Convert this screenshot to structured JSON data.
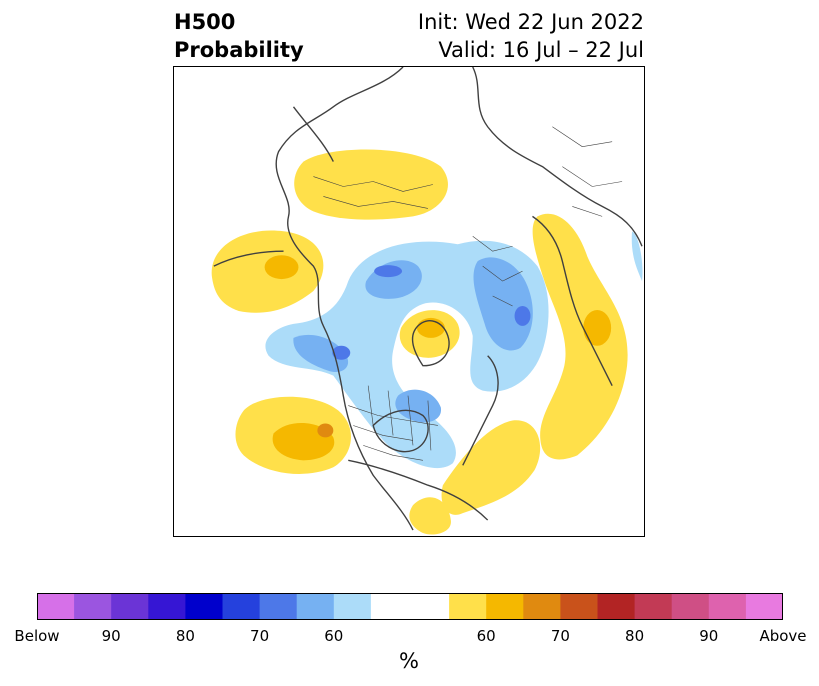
{
  "title": {
    "left_line1": "H500",
    "left_line2": "Probability",
    "init": "Init: Wed 22 Jun 2022",
    "valid": "Valid: 16 Jul – 22 Jul"
  },
  "colorbar": {
    "units": "%",
    "below_colors": [
      "#d670e8",
      "#9b55e0",
      "#6b34d6",
      "#3616d4",
      "#0000cc",
      "#2541dd",
      "#4d78e8",
      "#76b1f2",
      "#acdcf9"
    ],
    "neutral_color": "#ffffff",
    "above_colors": [
      "#ffe04a",
      "#f5b800",
      "#e08a10",
      "#c9521b",
      "#b22424",
      "#c23a55",
      "#cf4f85",
      "#de62ae",
      "#e87ae0"
    ],
    "tick_labels": [
      "Below",
      "90",
      "80",
      "70",
      "60",
      "60",
      "70",
      "80",
      "90",
      "Above"
    ]
  },
  "map": {
    "projection": "north-polar-stereographic",
    "colors": {
      "above_light": "#ffe04a",
      "above_mid": "#f5b800",
      "above_dark": "#e08a10",
      "below_light": "#acdcf9",
      "below_mid": "#76b1f2",
      "below_dark": "#4d78e8",
      "coast": "#404040"
    }
  }
}
